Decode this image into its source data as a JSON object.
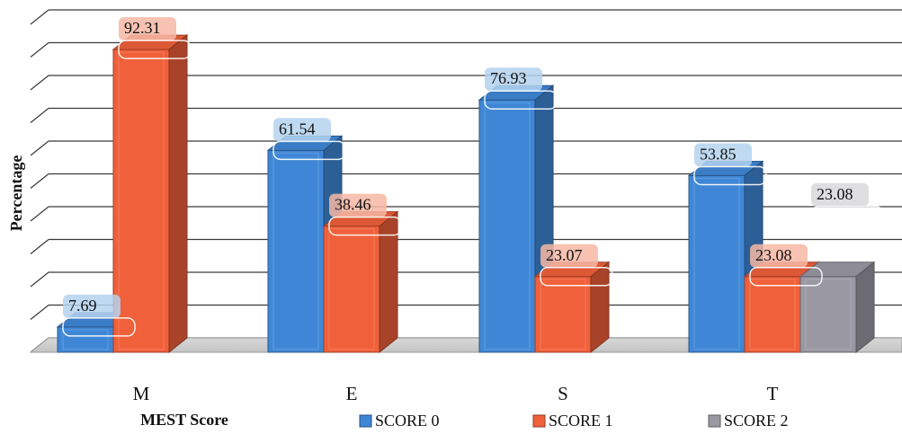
{
  "chart_data": {
    "type": "bar",
    "style": "3d-clustered-column",
    "xlabel": "MEST Score",
    "ylabel": "Percentage",
    "categories": [
      "M",
      "E",
      "S",
      "T"
    ],
    "ylim": [
      0,
      100
    ],
    "grid": true,
    "legend_position": "bottom",
    "series": [
      {
        "name": "SCORE 0",
        "color": "#3f87d6",
        "values": [
          7.69,
          61.54,
          76.93,
          53.85
        ],
        "labels": [
          "7.69",
          "61.54",
          "76.93",
          "53.85"
        ]
      },
      {
        "name": "SCORE 1",
        "color": "#f0603a",
        "values": [
          92.31,
          38.46,
          23.07,
          23.08
        ],
        "labels": [
          "92.31",
          "38.46",
          "23.07",
          "23.08"
        ]
      },
      {
        "name": "SCORE 2",
        "color": "#9a98a3",
        "values": [
          null,
          null,
          null,
          23.08
        ],
        "labels": [
          null,
          null,
          null,
          "23.08"
        ]
      }
    ]
  }
}
